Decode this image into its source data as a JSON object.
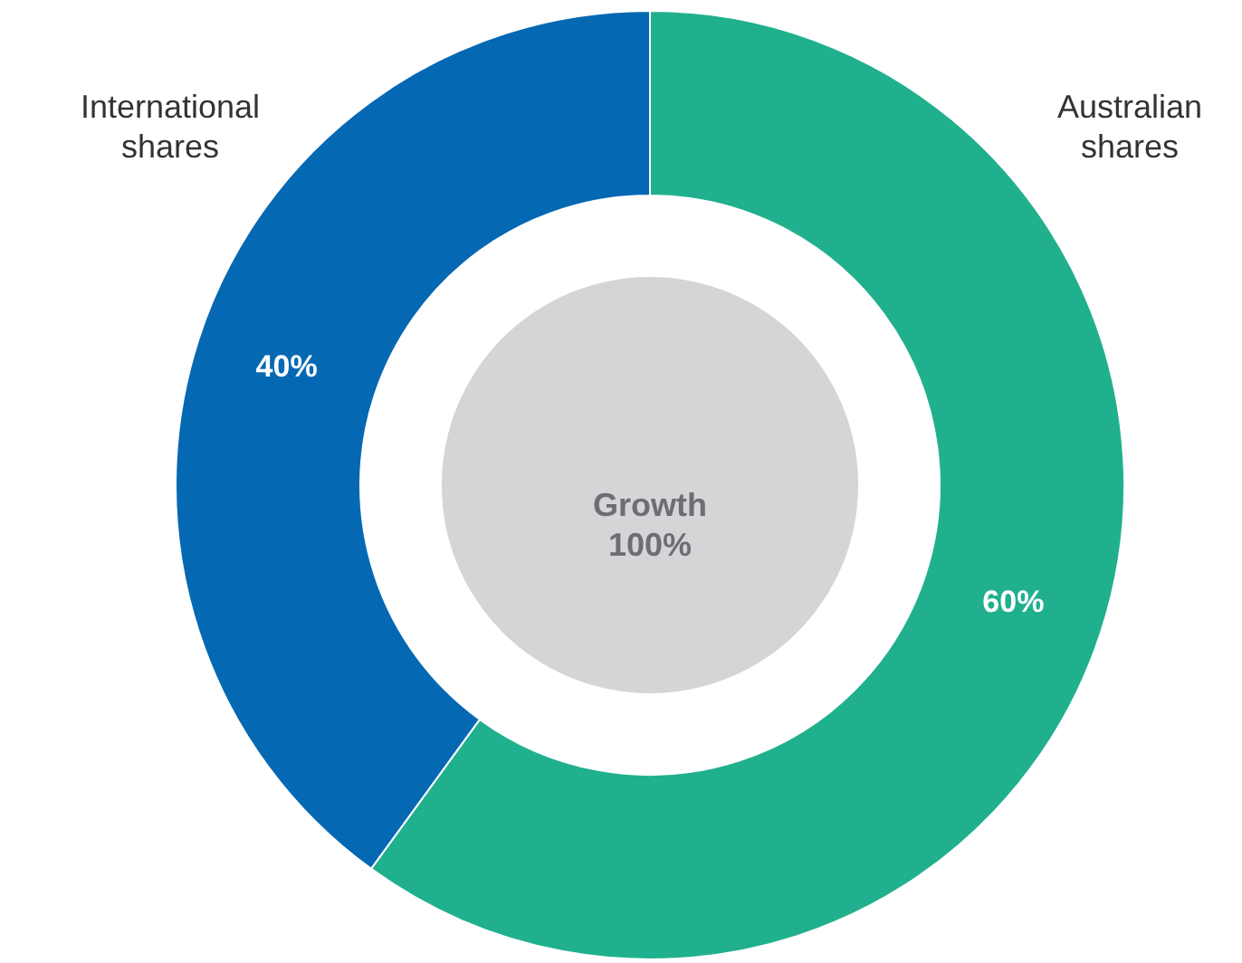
{
  "chart_data": {
    "type": "donut",
    "categories": [
      "Australian shares",
      "International shares"
    ],
    "values": [
      60,
      40
    ],
    "colors": [
      "#20b08e",
      "#0568b3"
    ],
    "value_labels": [
      "60%",
      "40%"
    ],
    "annotations": [
      "Growth 100%"
    ],
    "legend": false
  }
}
